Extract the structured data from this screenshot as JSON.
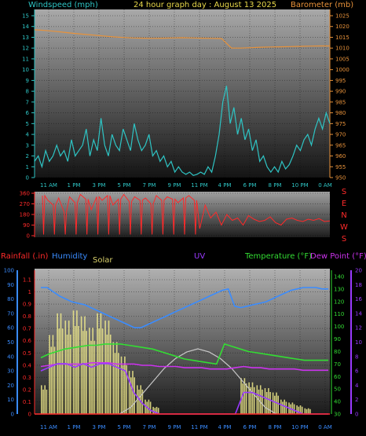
{
  "chart_data": [
    {
      "type": "line",
      "id": "wind-baro",
      "title": "24 hour graph day : August 13 2025",
      "ylabel_left": "Windspeed (mph)",
      "ylabel_right": "Barometer (mb)",
      "x_ticks": [
        "11 AM",
        "1 PM",
        "3 PM",
        "5 PM",
        "7 PM",
        "9 PM",
        "11 PM",
        "4 PM",
        "6 PM",
        "8 PM",
        "10 PM",
        "0 AM"
      ],
      "y_left_ticks": [
        "0",
        "1",
        "2",
        "3",
        "4",
        "5",
        "6",
        "7",
        "8",
        "9",
        "10",
        "11",
        "12",
        "13",
        "14",
        "15"
      ],
      "y_right_ticks": [
        "950",
        "955",
        "960",
        "965",
        "970",
        "975",
        "980",
        "985",
        "990",
        "995",
        "1000",
        "1005",
        "1010",
        "1015",
        "1020",
        "1025"
      ],
      "ylim_left": [
        0,
        15
      ],
      "ylim_right": [
        950,
        1025
      ],
      "series": [
        {
          "name": "Windspeed (mph)",
          "color": "#2ec4c4",
          "axis": "left",
          "values": [
            1.5,
            2.0,
            1.0,
            2.5,
            1.5,
            2.0,
            3.0,
            2.0,
            2.5,
            1.5,
            3.5,
            2.0,
            2.5,
            3.0,
            4.5,
            2.0,
            3.5,
            2.5,
            5.5,
            3.0,
            2.0,
            4.0,
            3.0,
            2.5,
            4.5,
            3.5,
            2.5,
            5.0,
            3.5,
            2.5,
            3.0,
            4.0,
            2.0,
            2.5,
            1.5,
            2.0,
            1.0,
            1.5,
            0.5,
            1.0,
            0.5,
            0.3,
            0.5,
            0.2,
            0.3,
            0.5,
            0.3,
            1.0,
            0.5,
            2.0,
            4.0,
            7.0,
            8.5,
            5.0,
            6.5,
            4.0,
            5.5,
            3.5,
            4.5,
            2.5,
            3.5,
            1.5,
            2.0,
            1.0,
            0.5,
            1.0,
            0.5,
            1.5,
            0.8,
            1.2,
            2.0,
            3.0,
            2.5,
            3.5,
            4.0,
            3.0,
            4.5,
            5.5,
            4.5,
            6.0,
            5.0
          ]
        },
        {
          "name": "Barometer (mb)",
          "color": "#e8923a",
          "axis": "right",
          "values": [
            1018.5,
            1018.2,
            1017.8,
            1017.3,
            1016.8,
            1016.4,
            1016.0,
            1015.6,
            1015.2,
            1014.9,
            1014.7,
            1014.6,
            1014.5,
            1014.6,
            1014.7,
            1014.8,
            1014.7,
            1014.6,
            1014.5,
            1014.4,
            1010.0,
            1010.0,
            1010.2,
            1010.4,
            1010.5,
            1010.6,
            1010.7,
            1010.8,
            1010.9,
            1011.0,
            1011.0
          ]
        }
      ]
    },
    {
      "type": "line",
      "id": "wind-direction",
      "ylabel_right": [
        "S",
        "E",
        "N",
        "W",
        "S"
      ],
      "y_left_ticks": [
        "0",
        "90",
        "180",
        "270",
        "360"
      ],
      "ylim": [
        0,
        360
      ],
      "series": [
        {
          "name": "Wind direction",
          "color": "#ff2a2a",
          "values": [
            340,
            300,
            260,
            320,
            200,
            330,
            280,
            350,
            310,
            220,
            330,
            300,
            340,
            260,
            310,
            350,
            290,
            330,
            300,
            320,
            270,
            340,
            300,
            330,
            310,
            280,
            320,
            340,
            300,
            60,
            260,
            150,
            200,
            90,
            180,
            130,
            150,
            90,
            170,
            140,
            120,
            130,
            160,
            110,
            90,
            140,
            150,
            130,
            120,
            140,
            130,
            145,
            120,
            125
          ]
        }
      ]
    },
    {
      "type": "line",
      "id": "multi",
      "legend": [
        "Rainfall (.in)",
        "Humidity",
        "Solar",
        "UV",
        "Temperature (°F)",
        "Dew Point (°F)"
      ],
      "colors": {
        "rain": "#ff2a2a",
        "humidity": "#3a8cff",
        "solar": "#f2ec8c",
        "uv": "#9a3aff",
        "temperature": "#33dd33",
        "dew": "#cc33ee"
      },
      "y_humidity_ticks": [
        "0",
        "10",
        "20",
        "30",
        "40",
        "50",
        "60",
        "70",
        "80",
        "90",
        "100"
      ],
      "y_rain_ticks": [
        "0",
        "0.1",
        "0.2",
        "0.3",
        "0.4",
        "0.5",
        "0.6",
        "0.7",
        "0.8",
        "0.9",
        "1",
        "1.1"
      ],
      "y_temp_ticks": [
        "30",
        "40",
        "50",
        "60",
        "70",
        "80",
        "90",
        "100",
        "110",
        "120",
        "130",
        "140"
      ],
      "y_uv_ticks": [
        "0",
        "2",
        "4",
        "6",
        "8",
        "10",
        "12",
        "14",
        "16",
        "18",
        "20"
      ],
      "ylim_humidity": [
        0,
        100
      ],
      "ylim_temp": [
        30,
        140
      ],
      "ylim_uv": [
        0,
        20
      ],
      "series": [
        {
          "name": "Humidity",
          "values": [
            88,
            88,
            85,
            82,
            80,
            78,
            77,
            76,
            74,
            72,
            70,
            68,
            66,
            64,
            62,
            60,
            60,
            62,
            64,
            66,
            68,
            70,
            72,
            74,
            76,
            78,
            80,
            82,
            84,
            86,
            87,
            75,
            74,
            75,
            76,
            77,
            78,
            80,
            82,
            84,
            86,
            87,
            88,
            88,
            88,
            87,
            87
          ]
        },
        {
          "name": "Temperature (°F)",
          "values": [
            75,
            78,
            80,
            82,
            83,
            84,
            85,
            85,
            86,
            86,
            86,
            85,
            84,
            83,
            82,
            80,
            78,
            76,
            74,
            73,
            72,
            71,
            70,
            86,
            84,
            82,
            80,
            79,
            78,
            77,
            76,
            75,
            74,
            73,
            73,
            73,
            73
          ]
        },
        {
          "name": "Dew Point (°F)",
          "values": [
            68,
            69,
            70,
            70,
            70,
            70,
            71,
            71,
            71,
            70,
            70,
            70,
            69,
            69,
            68,
            68,
            68,
            67,
            67,
            67,
            66,
            66,
            66,
            67,
            68,
            67,
            67,
            66,
            66,
            66,
            66,
            65,
            65,
            65,
            65
          ]
        },
        {
          "name": "UV",
          "values": [
            6,
            6.5,
            7,
            7,
            6.5,
            7,
            6.5,
            7,
            7,
            6.5,
            6,
            3,
            1.5,
            0.5,
            0,
            0,
            0,
            0,
            0,
            0,
            0,
            0,
            0,
            0,
            3,
            3,
            2.5,
            2,
            1.5,
            1,
            0.5,
            0,
            0,
            0,
            0
          ]
        },
        {
          "name": "Solar (arc)",
          "values": [
            0,
            0.1,
            0.3,
            0.5,
            0.7,
            0.85,
            0.95,
            1.0,
            0.95,
            0.85,
            0.7,
            0.5,
            0.3,
            0.1,
            0
          ]
        },
        {
          "name": "Solar",
          "values": [
            200,
            550,
            700,
            650,
            720,
            680,
            600,
            700,
            650,
            500,
            400,
            300,
            200,
            100,
            50,
            0,
            0,
            0,
            0,
            0,
            0,
            0,
            0,
            0,
            0,
            250,
            220,
            200,
            180,
            150,
            100,
            80,
            60,
            40,
            0,
            0,
            0
          ]
        }
      ]
    }
  ],
  "panel3_labels": {
    "rain": "Rainfall (.in)",
    "humidity": "Humidity",
    "solar": "Solar",
    "uv": "UV",
    "temperature": "Temperature (°F)",
    "dew": "Dew Point (°F)"
  }
}
